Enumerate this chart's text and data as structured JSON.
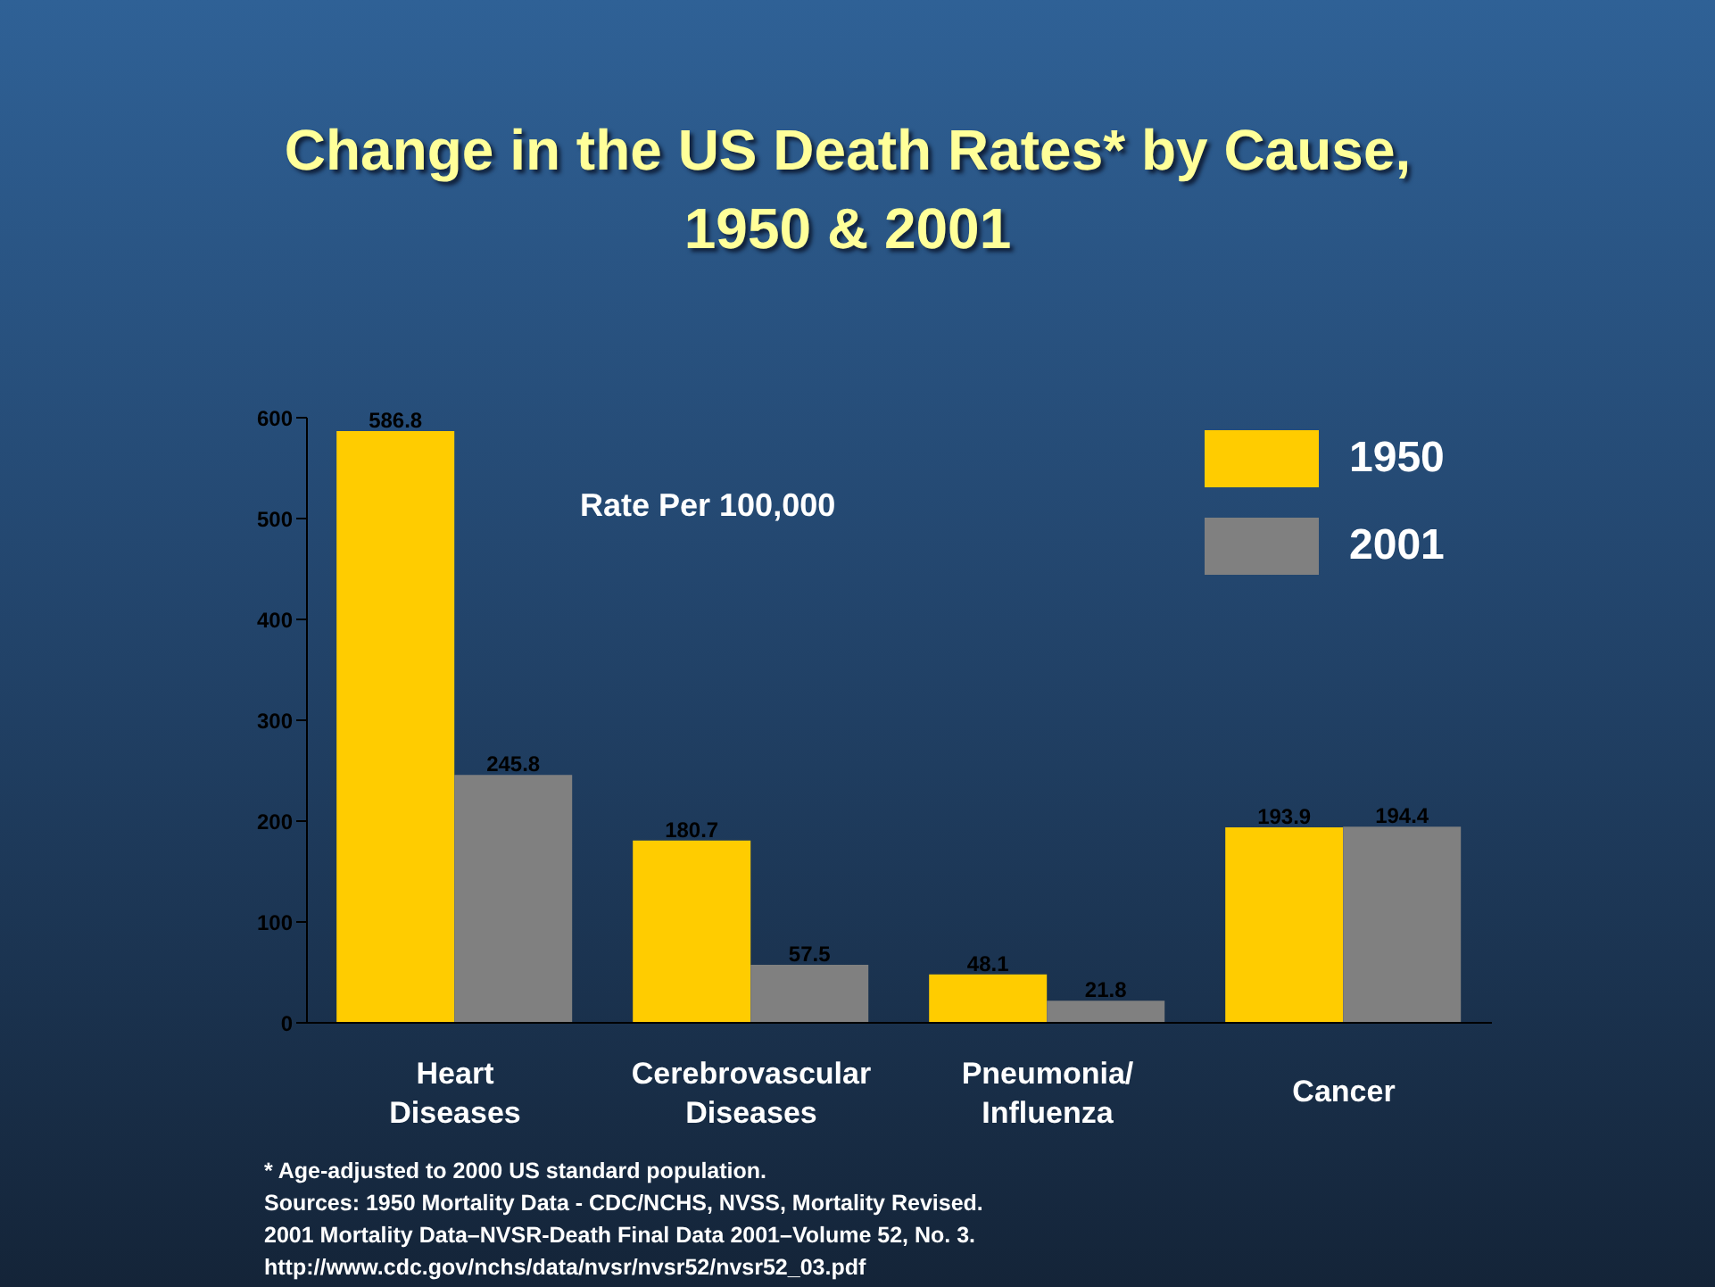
{
  "chart_data": {
    "type": "bar",
    "title": "Change in the US Death Rates* by Cause,\n1950 & 2001",
    "ylabel": "Rate Per 100,000",
    "categories": [
      "Heart Diseases",
      "Cerebrovascular Diseases",
      "Pneumonia/ Influenza",
      "Cancer"
    ],
    "series": [
      {
        "name": "1950",
        "color": "#ffcc00",
        "values": [
          586.8,
          180.7,
          48.1,
          193.9
        ]
      },
      {
        "name": "2001",
        "color": "#808080",
        "values": [
          245.8,
          57.5,
          21.8,
          194.4
        ]
      }
    ],
    "ylim": [
      0,
      600
    ],
    "yticks": [
      0,
      100,
      200,
      300,
      400,
      500,
      600
    ],
    "grid": false,
    "legend": "top right",
    "data_labels": true,
    "annotations": [
      "* Age-adjusted to 2000 US standard population.",
      "Sources: 1950 Mortality Data - CDC/NCHS, NVSS, Mortality Revised.",
      "2001 Mortality Data–NVSR-Death Final Data 2001–Volume 52, No. 3.",
      "http://www.cdc.gov/nchs/data/nvsr/nvsr52/nvsr52_03.pdf"
    ]
  }
}
